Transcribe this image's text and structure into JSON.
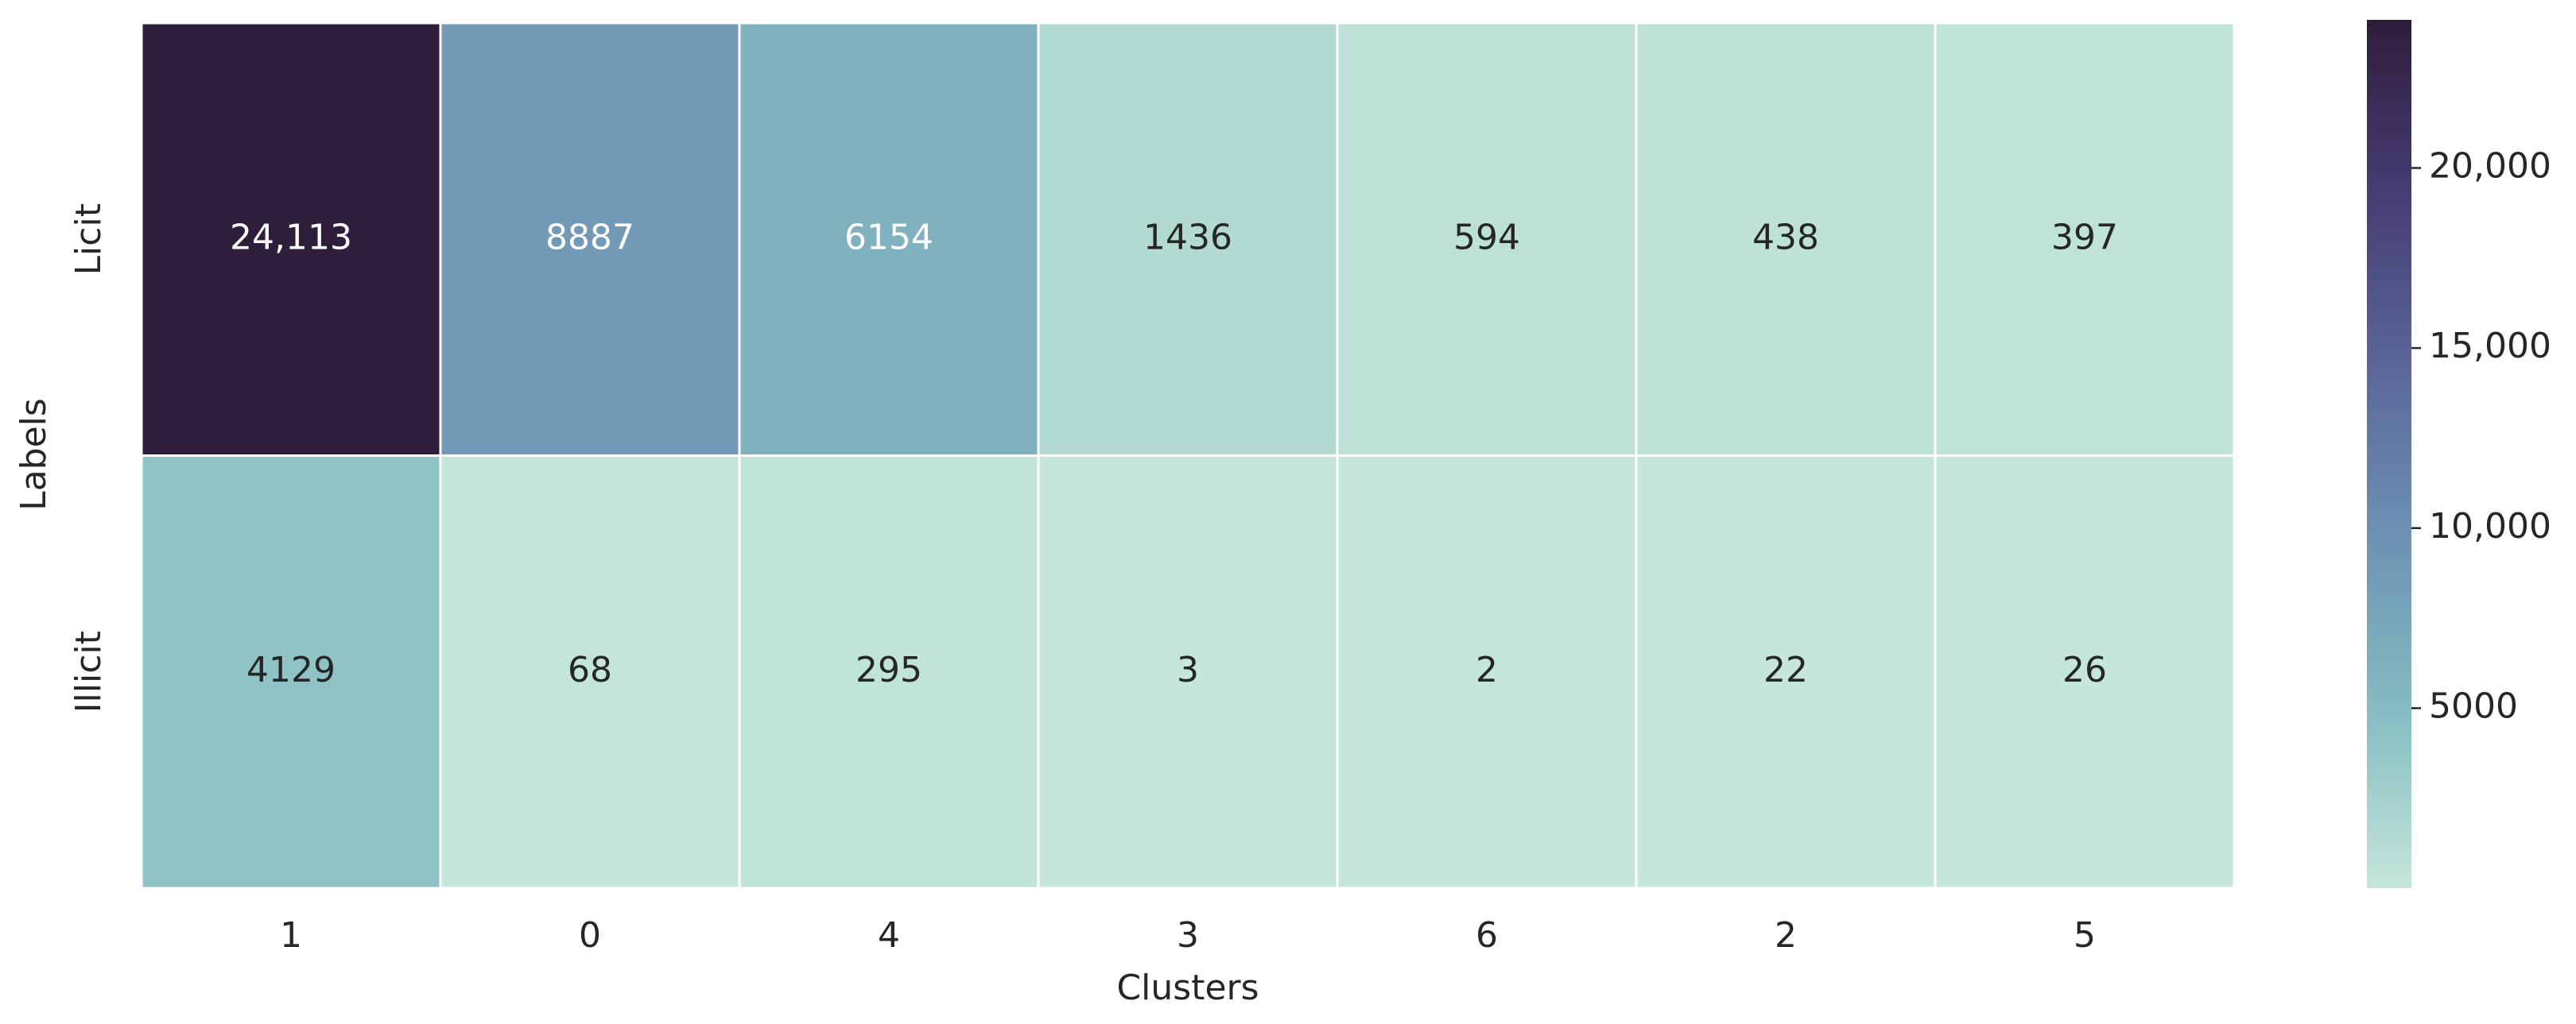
{
  "chart_data": {
    "type": "heatmap",
    "x_label": "Clusters",
    "y_label": "Labels",
    "x_categories": [
      "1",
      "0",
      "4",
      "3",
      "6",
      "2",
      "5"
    ],
    "y_categories": [
      "Licit",
      "Illicit"
    ],
    "values": [
      [
        24113,
        8887,
        6154,
        1436,
        594,
        438,
        397
      ],
      [
        4129,
        68,
        295,
        3,
        2,
        22,
        26
      ]
    ],
    "value_labels": [
      [
        "24,113",
        "8887",
        "6154",
        "1436",
        "594",
        "438",
        "397"
      ],
      [
        "4129",
        "68",
        "295",
        "3",
        "2",
        "22",
        "26"
      ]
    ],
    "colormap": [
      "#c5e6da",
      "#86bdc2",
      "#6e93b4",
      "#5b6699",
      "#463d74",
      "#2e1d3b"
    ],
    "clim": [
      2,
      24113
    ],
    "cticks": [
      5000,
      {
        "value": 10000,
        "label": "10,000"
      },
      {
        "value": 15000,
        "label": "15,000"
      },
      {
        "value": 20000,
        "label": "20,000"
      }
    ]
  }
}
